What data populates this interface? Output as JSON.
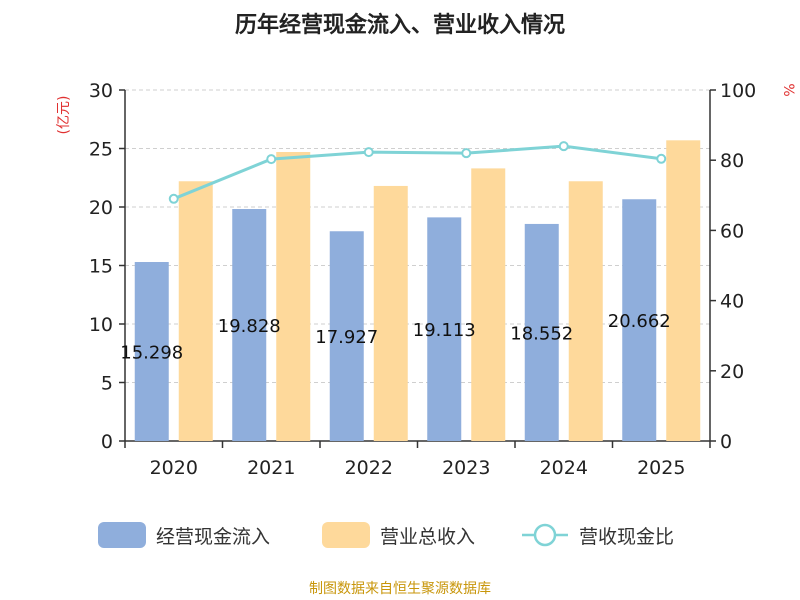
{
  "chart_data": {
    "type": "bar",
    "title": "历年经营现金流入、营业收入情况",
    "categories": [
      "2020",
      "2021",
      "2022",
      "2023",
      "2024",
      "2025"
    ],
    "series": [
      {
        "name": "经营现金流入",
        "kind": "bar",
        "axis": "left",
        "color": "#8faedc",
        "values": [
          15.298,
          19.828,
          17.927,
          19.113,
          18.552,
          20.662
        ],
        "labels": [
          "15.298",
          "19.828",
          "17.927",
          "19.113",
          "18.552",
          "20.662"
        ]
      },
      {
        "name": "营业总收入",
        "kind": "bar",
        "axis": "left",
        "color": "#fed99b",
        "values": [
          22.2,
          24.7,
          21.8,
          23.3,
          22.2,
          25.7
        ]
      },
      {
        "name": "营收现金比",
        "kind": "line",
        "axis": "right",
        "color": "#7fd3d6",
        "values": [
          69,
          80.3,
          82.3,
          82,
          84,
          80.4
        ]
      }
    ],
    "y_left": {
      "label": "(亿元)",
      "min": 0,
      "max": 30,
      "ticks": [
        0,
        5,
        10,
        15,
        20,
        25,
        30
      ]
    },
    "y_right": {
      "label": "%",
      "min": 0,
      "max": 100,
      "ticks": [
        0,
        20,
        40,
        60,
        80,
        100
      ]
    },
    "legend_position": "bottom",
    "grid": "horizontal dashed",
    "source": "制图数据来自恒生聚源数据库",
    "label_color": "#e03030",
    "source_color": "#c8960a"
  }
}
